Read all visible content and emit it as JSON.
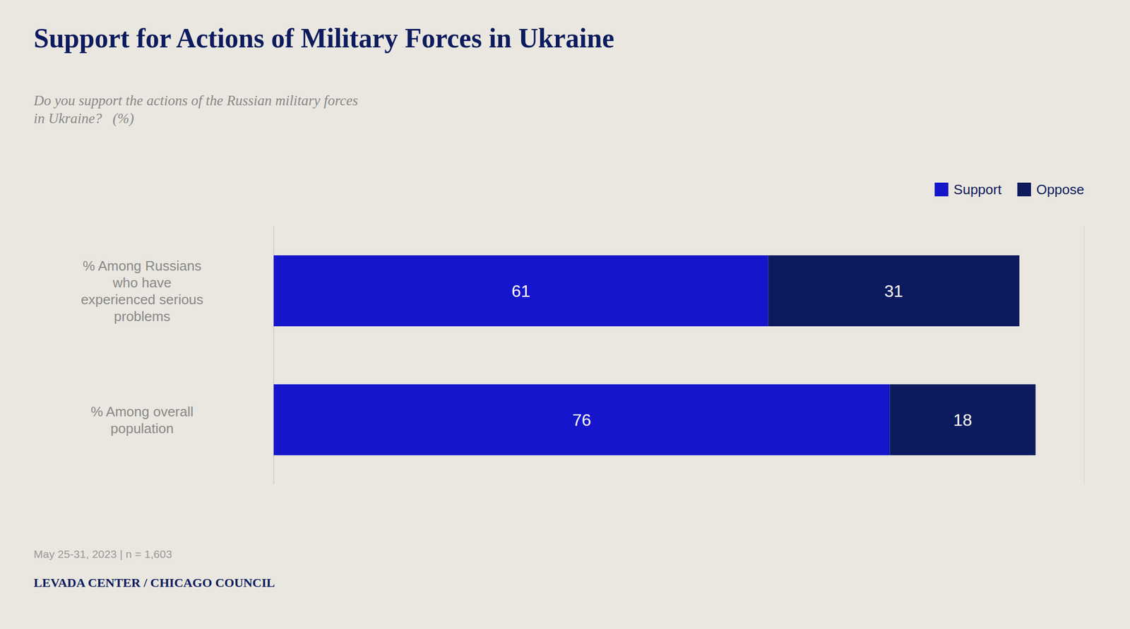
{
  "chart_data": {
    "type": "bar",
    "orientation": "horizontal",
    "stacked": true,
    "title": "Support for Actions of Military Forces in Ukraine",
    "subtitle": "Do you support the actions of the Russian military forces\nin Ukraine?   (%)",
    "categories": [
      "% Among Russians\nwho have\nexperienced serious\nproblems",
      "% Among overall\npopulation"
    ],
    "series": [
      {
        "name": "Support",
        "color": "#1515CC",
        "values": [
          61,
          76
        ]
      },
      {
        "name": "Oppose",
        "color": "#0D1B5E",
        "values": [
          31,
          18
        ]
      }
    ],
    "xlim": [
      0,
      100
    ],
    "tick_labels": false,
    "data_labels": true,
    "grid": false,
    "legend": "upper right",
    "annotations": [
      "May 25-31, 2023 | n = 1,603",
      "LEVADA CENTER / CHICAGO COUNCIL"
    ]
  }
}
